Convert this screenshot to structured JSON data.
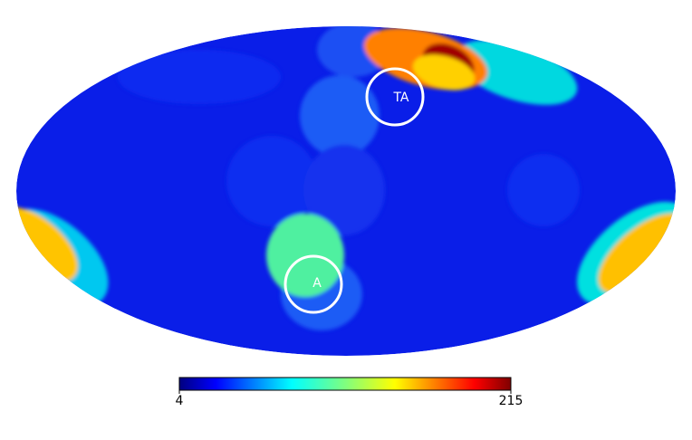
{
  "map": {
    "projection": "mollweide",
    "markers": [
      {
        "label": "TA"
      },
      {
        "label": "A"
      }
    ],
    "colorbar": {
      "min": 4,
      "max": 215,
      "ticks": [
        4,
        215
      ]
    }
  }
}
